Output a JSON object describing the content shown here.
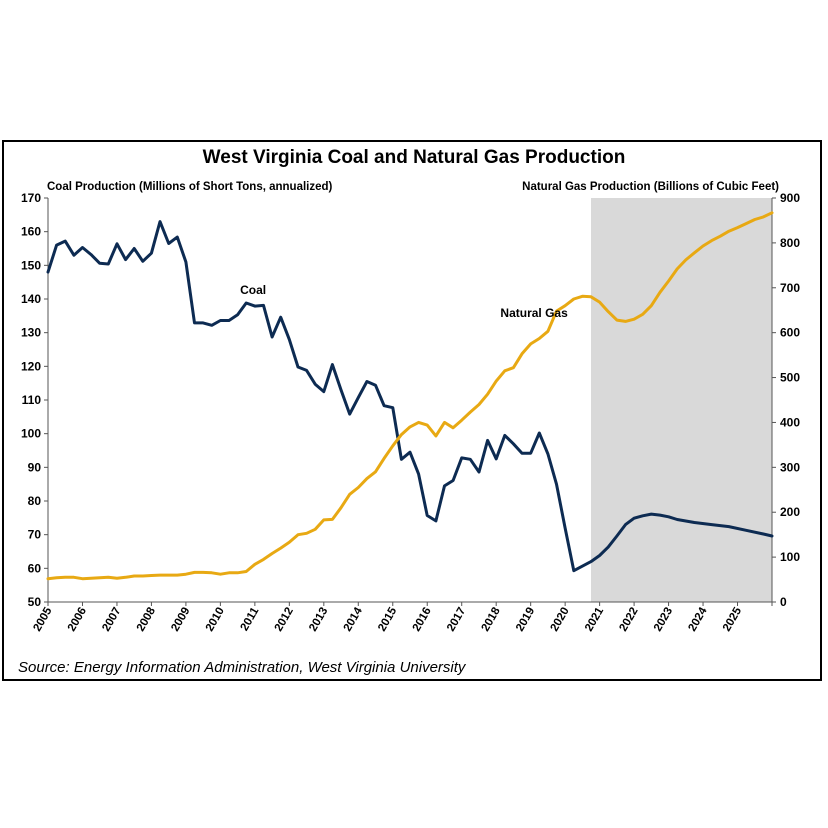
{
  "chart_data": {
    "type": "line",
    "title": "West Virginia Coal and Natural Gas Production",
    "y_left_label": "Coal Production (Millions of Short Tons, annualized)",
    "y_right_label": "Natural Gas Production (Billions of Cubic Feet)",
    "source": "Source: Energy Information Administration, West Virginia University",
    "x_ticks": [
      "2005",
      "2006",
      "2007",
      "2008",
      "2009",
      "2010",
      "2011",
      "2012",
      "2013",
      "2014",
      "2015",
      "2016",
      "2017",
      "2018",
      "2019",
      "2020",
      "2021",
      "2022",
      "2023",
      "2024",
      "2025"
    ],
    "y_left_ticks": [
      "50",
      "60",
      "70",
      "80",
      "90",
      "100",
      "110",
      "120",
      "130",
      "140",
      "150",
      "160",
      "170"
    ],
    "y_right_ticks": [
      "0",
      "100",
      "200",
      "300",
      "400",
      "500",
      "600",
      "700",
      "800",
      "900"
    ],
    "y_left_range": [
      50,
      170
    ],
    "y_right_range": [
      0,
      900
    ],
    "x_range": [
      2005,
      2026
    ],
    "forecast_start": 2020.75,
    "grid": false,
    "colors": {
      "coal": "#0d2b52",
      "natural_gas": "#e8a913",
      "forecast_shade": "#d9d9d9"
    },
    "series": [
      {
        "name": "Coal",
        "axis": "left",
        "points": [
          [
            2005.0,
            148
          ],
          [
            2005.25,
            156
          ],
          [
            2005.5,
            157.2
          ],
          [
            2005.75,
            153
          ],
          [
            2006.0,
            155.3
          ],
          [
            2006.25,
            153.2
          ],
          [
            2006.5,
            150.6
          ],
          [
            2006.75,
            150.4
          ],
          [
            2007.0,
            156.4
          ],
          [
            2007.25,
            151.7
          ],
          [
            2007.5,
            155
          ],
          [
            2007.75,
            151.2
          ],
          [
            2008.0,
            153.6
          ],
          [
            2008.25,
            163
          ],
          [
            2008.5,
            156.5
          ],
          [
            2008.75,
            158.4
          ],
          [
            2009.0,
            151
          ],
          [
            2009.25,
            132.9
          ],
          [
            2009.5,
            132.9
          ],
          [
            2009.75,
            132.2
          ],
          [
            2010.0,
            133.6
          ],
          [
            2010.25,
            133.6
          ],
          [
            2010.5,
            135.3
          ],
          [
            2010.75,
            138.8
          ],
          [
            2011.0,
            137.9
          ],
          [
            2011.25,
            138.1
          ],
          [
            2011.5,
            128.7
          ],
          [
            2011.75,
            134.6
          ],
          [
            2012.0,
            128
          ],
          [
            2012.25,
            119.8
          ],
          [
            2012.5,
            118.8
          ],
          [
            2012.75,
            114.7
          ],
          [
            2013.0,
            112.5
          ],
          [
            2013.25,
            120.5
          ],
          [
            2013.5,
            113
          ],
          [
            2013.75,
            105.8
          ],
          [
            2014.0,
            110.7
          ],
          [
            2014.25,
            115.5
          ],
          [
            2014.5,
            114.4
          ],
          [
            2014.75,
            108.3
          ],
          [
            2015.0,
            107.7
          ],
          [
            2015.25,
            92.4
          ],
          [
            2015.5,
            94.5
          ],
          [
            2015.75,
            88
          ],
          [
            2016.0,
            75.7
          ],
          [
            2016.25,
            74.1
          ],
          [
            2016.5,
            84.5
          ],
          [
            2016.75,
            86.1
          ],
          [
            2017.0,
            92.8
          ],
          [
            2017.25,
            92.4
          ],
          [
            2017.5,
            88.6
          ],
          [
            2017.75,
            98
          ],
          [
            2018.0,
            92.5
          ],
          [
            2018.25,
            99.5
          ],
          [
            2018.5,
            97
          ],
          [
            2018.75,
            94.2
          ],
          [
            2019.0,
            94.2
          ],
          [
            2019.25,
            100.2
          ],
          [
            2019.5,
            94
          ],
          [
            2019.75,
            85
          ],
          [
            2020.0,
            72
          ],
          [
            2020.25,
            59.3
          ],
          [
            2020.75,
            62
          ],
          [
            2021.0,
            63.8
          ],
          [
            2021.25,
            66.3
          ],
          [
            2021.5,
            69.6
          ],
          [
            2021.75,
            73
          ],
          [
            2022.0,
            74.9
          ],
          [
            2022.25,
            75.6
          ],
          [
            2022.5,
            76.1
          ],
          [
            2022.75,
            75.8
          ],
          [
            2023.0,
            75.3
          ],
          [
            2023.25,
            74.5
          ],
          [
            2023.75,
            73.6
          ],
          [
            2024.25,
            73
          ],
          [
            2024.75,
            72.4
          ],
          [
            2025.25,
            71.3
          ],
          [
            2025.75,
            70.2
          ],
          [
            2026.0,
            69.6
          ]
        ]
      },
      {
        "name": "Natural Gas",
        "axis": "right",
        "points": [
          [
            2005.0,
            52
          ],
          [
            2005.25,
            54
          ],
          [
            2005.5,
            55
          ],
          [
            2005.75,
            55
          ],
          [
            2006.0,
            52
          ],
          [
            2006.25,
            53
          ],
          [
            2006.5,
            54
          ],
          [
            2006.75,
            55
          ],
          [
            2007.0,
            53
          ],
          [
            2007.25,
            55
          ],
          [
            2007.5,
            58
          ],
          [
            2007.75,
            58
          ],
          [
            2008.0,
            59
          ],
          [
            2008.25,
            60
          ],
          [
            2008.5,
            60
          ],
          [
            2008.75,
            60
          ],
          [
            2009.0,
            62
          ],
          [
            2009.25,
            66
          ],
          [
            2009.5,
            66
          ],
          [
            2009.75,
            65
          ],
          [
            2010.0,
            62
          ],
          [
            2010.25,
            65
          ],
          [
            2010.5,
            65
          ],
          [
            2010.75,
            68
          ],
          [
            2011.0,
            84
          ],
          [
            2011.25,
            95
          ],
          [
            2011.5,
            108
          ],
          [
            2011.75,
            120
          ],
          [
            2012.0,
            133
          ],
          [
            2012.25,
            150
          ],
          [
            2012.5,
            153
          ],
          [
            2012.75,
            162
          ],
          [
            2013.0,
            183
          ],
          [
            2013.25,
            184
          ],
          [
            2013.5,
            210
          ],
          [
            2013.75,
            240
          ],
          [
            2014.0,
            255
          ],
          [
            2014.25,
            275
          ],
          [
            2014.5,
            290
          ],
          [
            2014.75,
            320
          ],
          [
            2015.0,
            348
          ],
          [
            2015.25,
            373
          ],
          [
            2015.5,
            390
          ],
          [
            2015.75,
            400
          ],
          [
            2016.0,
            394
          ],
          [
            2016.25,
            370
          ],
          [
            2016.5,
            400
          ],
          [
            2016.75,
            388
          ],
          [
            2017.0,
            405
          ],
          [
            2017.25,
            423
          ],
          [
            2017.5,
            440
          ],
          [
            2017.75,
            463
          ],
          [
            2018.0,
            492
          ],
          [
            2018.25,
            515
          ],
          [
            2018.5,
            522
          ],
          [
            2018.75,
            553
          ],
          [
            2019.0,
            575
          ],
          [
            2019.25,
            587
          ],
          [
            2019.5,
            603
          ],
          [
            2019.75,
            648
          ],
          [
            2020.0,
            660
          ],
          [
            2020.25,
            675
          ],
          [
            2020.5,
            681
          ],
          [
            2020.75,
            680
          ],
          [
            2021.0,
            668
          ],
          [
            2021.25,
            647
          ],
          [
            2021.5,
            628
          ],
          [
            2021.75,
            625
          ],
          [
            2022.0,
            630
          ],
          [
            2022.25,
            641
          ],
          [
            2022.5,
            660
          ],
          [
            2022.75,
            690
          ],
          [
            2023.0,
            715
          ],
          [
            2023.25,
            742
          ],
          [
            2023.5,
            762
          ],
          [
            2023.75,
            778
          ],
          [
            2024.0,
            793
          ],
          [
            2024.25,
            805
          ],
          [
            2024.5,
            815
          ],
          [
            2024.75,
            826
          ],
          [
            2025.0,
            834
          ],
          [
            2025.25,
            843
          ],
          [
            2025.5,
            852
          ],
          [
            2025.75,
            858
          ],
          [
            2026.0,
            867
          ]
        ]
      }
    ],
    "annotations": [
      {
        "text": "Coal",
        "x": 2010.95,
        "y": 141.5,
        "axis": "left"
      },
      {
        "text": "Natural Gas",
        "x": 2019.1,
        "y": 134.7,
        "axis": "left"
      }
    ]
  }
}
